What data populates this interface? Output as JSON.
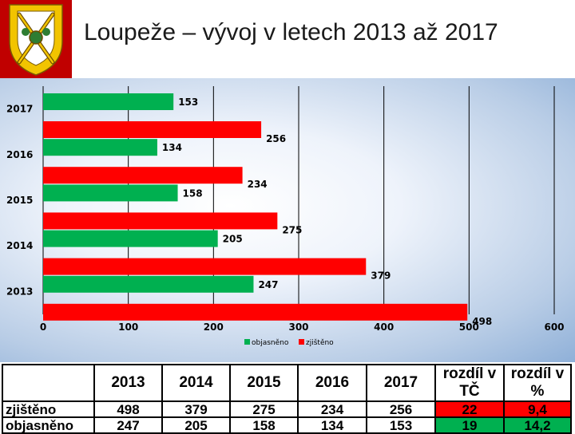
{
  "title": "Loupeže – vývoj v letech 2013 až 2017",
  "logo": {
    "icon": "crossed-swords-shield-icon",
    "color": "#c00000"
  },
  "colors": {
    "objasneno": "#00b050",
    "zjisteno": "#ff0000",
    "panel_edge": "#8fb0d8"
  },
  "chart_data": {
    "type": "bar",
    "orientation": "horizontal",
    "categories": [
      "2017",
      "2016",
      "2015",
      "2014",
      "2013"
    ],
    "series": [
      {
        "name": "objasněno",
        "color": "#00b050",
        "values": [
          153,
          134,
          158,
          205,
          247
        ]
      },
      {
        "name": "zjištěno",
        "color": "#ff0000",
        "values": [
          256,
          234,
          275,
          379,
          498
        ]
      }
    ],
    "xlim": [
      0,
      600
    ],
    "xticks": [
      "0",
      "100",
      "200",
      "300",
      "400",
      "500",
      "600"
    ],
    "grid": true,
    "legend": "bottom",
    "data_labels": true
  },
  "table": {
    "headers": [
      "2013",
      "2014",
      "2015",
      "2016",
      "2017"
    ],
    "diff_headers": [
      "rozdíl v TČ",
      "rozdíl v %"
    ],
    "rows": [
      {
        "label": "zjištěno",
        "values": [
          "498",
          "379",
          "275",
          "234",
          "256"
        ],
        "diff": [
          "22",
          "9,4"
        ],
        "diff_color": "#ff0000"
      },
      {
        "label": "objasněno",
        "values": [
          "247",
          "205",
          "158",
          "134",
          "153"
        ],
        "diff": [
          "19",
          "14,2"
        ],
        "diff_color": "#00b050"
      }
    ]
  }
}
